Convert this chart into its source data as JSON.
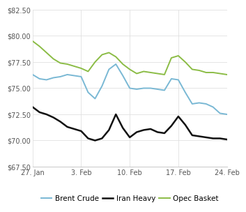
{
  "xlabels": [
    "27. Jan",
    "3. Feb",
    "10. Feb",
    "17. Feb",
    "24. Feb"
  ],
  "xtick_positions": [
    0,
    7,
    14,
    21,
    28
  ],
  "ylim": [
    67.5,
    82.5
  ],
  "yticks": [
    67.5,
    70.0,
    72.5,
    75.0,
    77.5,
    80.0,
    82.5
  ],
  "brent_crude": {
    "x": [
      0,
      1,
      2,
      3,
      4,
      5,
      6,
      7,
      8,
      9,
      10,
      11,
      12,
      13,
      14,
      15,
      16,
      17,
      18,
      19,
      20,
      21,
      22,
      23,
      24,
      25,
      26,
      27,
      28
    ],
    "y": [
      76.3,
      75.9,
      75.8,
      76.0,
      76.1,
      76.3,
      76.2,
      76.1,
      74.6,
      74.0,
      75.2,
      76.8,
      77.3,
      76.2,
      75.0,
      74.9,
      75.0,
      75.0,
      74.9,
      74.8,
      75.9,
      75.8,
      74.6,
      73.5,
      73.6,
      73.5,
      73.2,
      72.6,
      72.5
    ],
    "color": "#79b8d4",
    "label": "Brent Crude",
    "linewidth": 1.4
  },
  "iran_heavy": {
    "x": [
      0,
      1,
      2,
      3,
      4,
      5,
      6,
      7,
      8,
      9,
      10,
      11,
      12,
      13,
      14,
      15,
      16,
      17,
      18,
      19,
      20,
      21,
      22,
      23,
      24,
      25,
      26,
      27,
      28
    ],
    "y": [
      73.2,
      72.7,
      72.5,
      72.2,
      71.8,
      71.3,
      71.1,
      70.9,
      70.2,
      70.0,
      70.2,
      71.0,
      72.5,
      71.2,
      70.3,
      70.8,
      71.0,
      71.1,
      70.8,
      70.7,
      71.4,
      72.3,
      71.5,
      70.5,
      70.4,
      70.3,
      70.2,
      70.2,
      70.1
    ],
    "color": "#111111",
    "label": "Iran Heavy",
    "linewidth": 1.8
  },
  "opec_basket": {
    "x": [
      0,
      1,
      2,
      3,
      4,
      5,
      6,
      7,
      8,
      9,
      10,
      11,
      12,
      13,
      14,
      15,
      16,
      17,
      18,
      19,
      20,
      21,
      22,
      23,
      24,
      25,
      26,
      27,
      28
    ],
    "y": [
      79.5,
      79.0,
      78.4,
      77.8,
      77.4,
      77.3,
      77.1,
      76.9,
      76.6,
      77.5,
      78.2,
      78.4,
      78.0,
      77.3,
      76.8,
      76.4,
      76.6,
      76.5,
      76.4,
      76.3,
      77.9,
      78.1,
      77.5,
      76.8,
      76.7,
      76.5,
      76.5,
      76.4,
      76.3
    ],
    "color": "#8bbc45",
    "label": "Opec Basket",
    "linewidth": 1.4
  },
  "background_color": "#ffffff",
  "grid_color": "#e0e0e0",
  "legend_fontsize": 7.5,
  "tick_fontsize": 7.0
}
